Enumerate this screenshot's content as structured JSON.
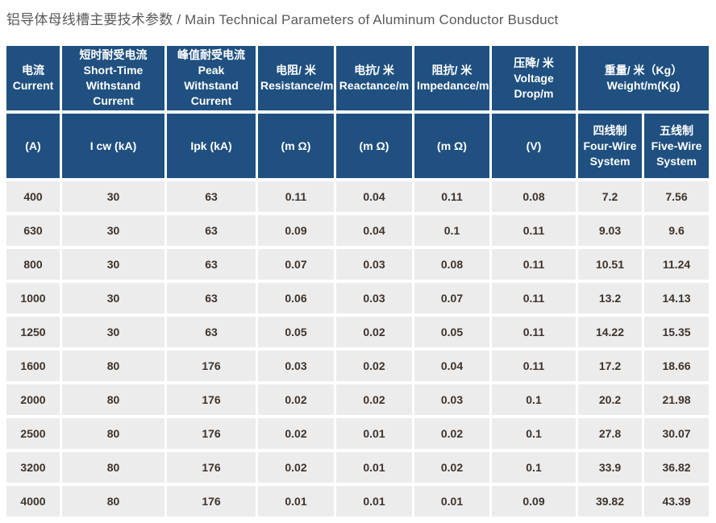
{
  "page": {
    "title": "铝导体母线槽主要技术参数 / Main Technical Parameters of Aluminum Conductor Busduct"
  },
  "colors": {
    "header_bg": "#1f5080",
    "header_text": "#ffffff",
    "row_bg": "#ececec",
    "data_text": "#3e332b",
    "title_text": "#595959",
    "gap_lines": "#ffffff"
  },
  "table": {
    "header_row1": [
      {
        "cn": "电流",
        "en": "Current"
      },
      {
        "cn": "短时耐受电流",
        "en": "Short-Time Withstand Current"
      },
      {
        "cn": "峰值耐受电流",
        "en": "Peak Withstand Current"
      },
      {
        "cn": "电阻/ 米",
        "en": "Resistance/m"
      },
      {
        "cn": "电抗/ 米",
        "en": "Reactance/m"
      },
      {
        "cn": "阻抗/ 米",
        "en": "Impedance/m"
      },
      {
        "cn": "压降/ 米",
        "en": "Voltage Drop/m"
      },
      {
        "cn": "重量/ 米（Kg）",
        "en": "Weight/m(Kg)",
        "colspan": 2
      }
    ],
    "header_row2": [
      {
        "label": "(A)"
      },
      {
        "label": "I cw (kA)"
      },
      {
        "label": "Ipk (kA)"
      },
      {
        "label": "(m Ω)"
      },
      {
        "label": "(m Ω)"
      },
      {
        "label": "(m Ω)"
      },
      {
        "label": "(V)"
      },
      {
        "cn": "四线制",
        "en": "Four-Wire System"
      },
      {
        "cn": "五线制",
        "en": "Five-Wire System"
      }
    ],
    "rows": [
      [
        "400",
        "30",
        "63",
        "0.11",
        "0.04",
        "0.11",
        "0.08",
        "7.2",
        "7.56"
      ],
      [
        "630",
        "30",
        "63",
        "0.09",
        "0.04",
        "0.1",
        "0.11",
        "9.03",
        "9.6"
      ],
      [
        "800",
        "30",
        "63",
        "0.07",
        "0.03",
        "0.08",
        "0.11",
        "10.51",
        "11.24"
      ],
      [
        "1000",
        "30",
        "63",
        "0.06",
        "0.03",
        "0.07",
        "0.11",
        "13.2",
        "14.13"
      ],
      [
        "1250",
        "30",
        "63",
        "0.05",
        "0.02",
        "0.05",
        "0.11",
        "14.22",
        "15.35"
      ],
      [
        "1600",
        "80",
        "176",
        "0.03",
        "0.02",
        "0.04",
        "0.11",
        "17.2",
        "18.66"
      ],
      [
        "2000",
        "80",
        "176",
        "0.02",
        "0.02",
        "0.03",
        "0.1",
        "20.2",
        "21.98"
      ],
      [
        "2500",
        "80",
        "176",
        "0.02",
        "0.01",
        "0.02",
        "0.1",
        "27.8",
        "30.07"
      ],
      [
        "3200",
        "80",
        "176",
        "0.02",
        "0.01",
        "0.02",
        "0.1",
        "33.9",
        "36.82"
      ],
      [
        "4000",
        "80",
        "176",
        "0.01",
        "0.01",
        "0.01",
        "0.09",
        "39.82",
        "43.39"
      ]
    ]
  }
}
